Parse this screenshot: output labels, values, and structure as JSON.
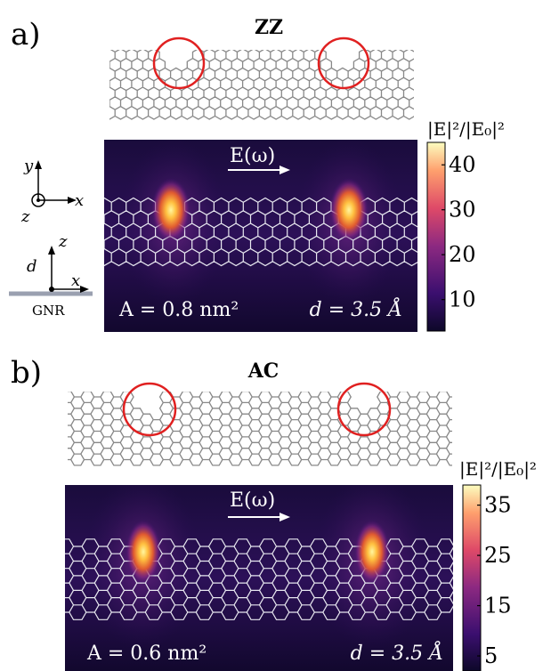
{
  "panel_a": {
    "label": "a)",
    "title": "ZZ",
    "field_label": "E(ω)",
    "area": "A = 0.8 nm²",
    "distance": "d = 3.5 Å",
    "colorbar_title": "|E|²/|E₀|²",
    "colorbar_ticks": [
      "40",
      "30",
      "20",
      "10"
    ],
    "colorbar_range": [
      3,
      45
    ]
  },
  "panel_b": {
    "label": "b)",
    "title": "AC",
    "field_label": "E(ω)",
    "area": "A = 0.6 nm²",
    "distance": "d = 3.5 Å",
    "colorbar_title": "|E|²/|E₀|²",
    "colorbar_ticks": [
      "35",
      "25",
      "15",
      "5"
    ],
    "colorbar_range": [
      2,
      39
    ]
  },
  "axes_inset": {
    "y": "y",
    "x_top": "x",
    "z_top": "z",
    "z_side": "z",
    "x_side": "x",
    "d": "d",
    "substrate": "GNR"
  },
  "colors": {
    "ring": "#e02020",
    "lattice": "#888888",
    "map_background": "#160a35",
    "hotspot": "#ffd040"
  }
}
